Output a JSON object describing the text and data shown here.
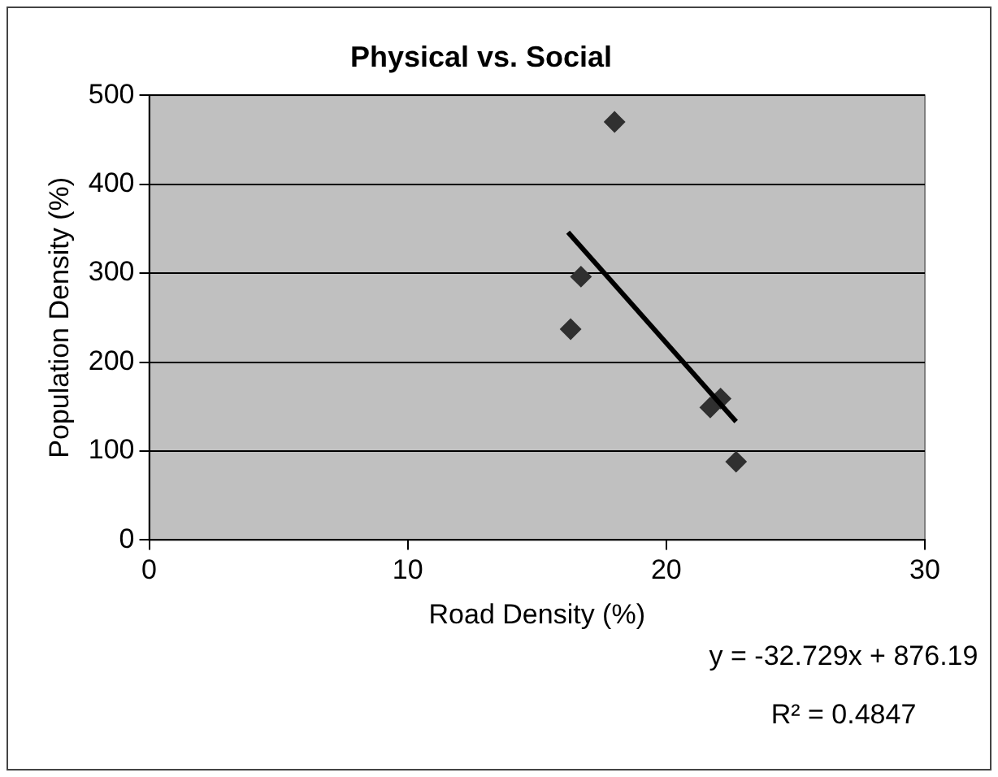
{
  "chart_data": {
    "type": "scatter",
    "title": "Physical vs. Social",
    "xlabel": "Road Density (%)",
    "ylabel": "Population Density (%)",
    "xlim": [
      0,
      30
    ],
    "xticks": [
      0,
      10,
      20,
      30
    ],
    "ylim": [
      0,
      500
    ],
    "yticks": [
      0,
      100,
      200,
      300,
      400,
      500
    ],
    "grid": "y",
    "legend": false,
    "marker": "diamond",
    "series": [
      {
        "color": "#303030",
        "x": [
          18.0,
          16.7,
          16.3,
          21.7,
          22.1,
          22.7
        ],
        "values": [
          470,
          296,
          237,
          149,
          159,
          88
        ]
      },
      {
        "type": "line",
        "color": "#000000",
        "marker": "none",
        "x": [
          16.2,
          22.7
        ],
        "values": [
          346,
          133
        ]
      }
    ],
    "annotations": [
      "y = -32.729x + 876.19",
      "R² = 0.4847"
    ]
  }
}
